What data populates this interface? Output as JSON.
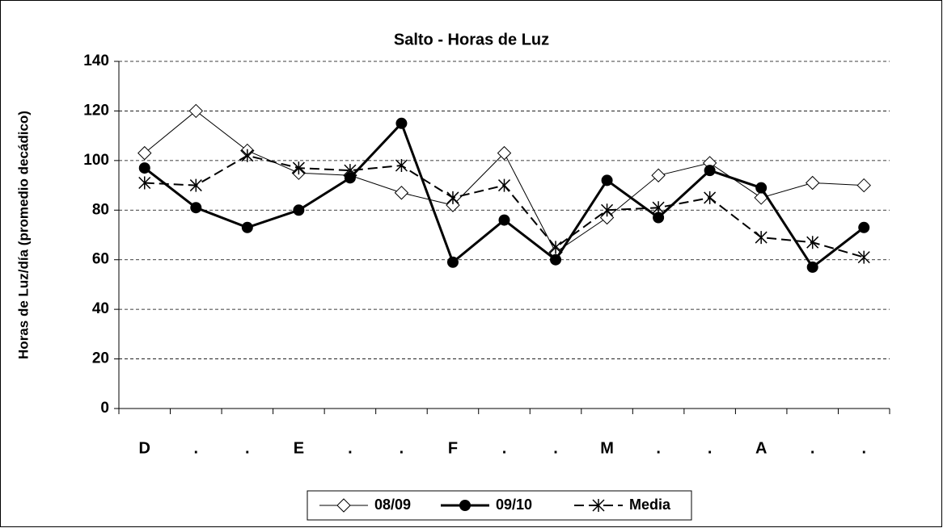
{
  "chart_data": {
    "type": "line",
    "title": "Salto - Horas de Luz",
    "y_label": "Horas de Luz/día (promedio decádico)",
    "categories": [
      "D",
      ".",
      ".",
      "E",
      ".",
      ".",
      "F",
      ".",
      ".",
      "M",
      ".",
      ".",
      "A",
      ".",
      "."
    ],
    "series": [
      {
        "name": "08/09",
        "color": "#000000",
        "marker": "diamond",
        "dash": false,
        "width": 1,
        "values": [
          103,
          120,
          104,
          95,
          94,
          87,
          82,
          103,
          63,
          77,
          94,
          99,
          85,
          91,
          90
        ]
      },
      {
        "name": "09/10",
        "color": "#000000",
        "marker": "circle",
        "dash": false,
        "width": 3,
        "values": [
          97,
          81,
          73,
          80,
          93,
          115,
          59,
          76,
          60,
          92,
          77,
          96,
          89,
          57,
          73
        ]
      },
      {
        "name": "Media",
        "color": "#000000",
        "marker": "asterisk",
        "dash": true,
        "width": 2,
        "values": [
          91,
          90,
          102,
          97,
          96,
          98,
          85,
          90,
          65,
          80,
          81,
          85,
          69,
          67,
          61
        ]
      }
    ],
    "ylim": [
      0,
      140
    ],
    "yticks": [
      0,
      20,
      40,
      60,
      80,
      100,
      120,
      140
    ],
    "grid": true
  }
}
